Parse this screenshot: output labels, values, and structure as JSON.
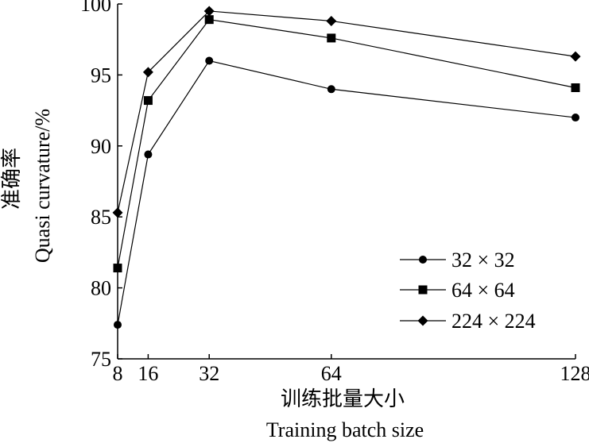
{
  "chart_data": {
    "type": "line",
    "x": [
      8,
      16,
      32,
      64,
      128
    ],
    "series": [
      {
        "name": "32 × 32",
        "marker": "circle",
        "values": [
          77.4,
          89.4,
          96.0,
          94.0,
          92.0
        ]
      },
      {
        "name": "64 × 64",
        "marker": "square",
        "values": [
          81.4,
          93.2,
          98.9,
          97.6,
          94.1
        ]
      },
      {
        "name": "224 × 224",
        "marker": "diamond",
        "values": [
          85.3,
          95.2,
          99.5,
          98.8,
          96.3
        ]
      }
    ],
    "xlabel_cn": "训练批量大小",
    "xlabel_en": "Training batch size",
    "ylabel_cn": "准确率",
    "ylabel_en": "Quasi curvature/%",
    "xticks": [
      8,
      16,
      32,
      64,
      128
    ],
    "yticks": [
      75,
      80,
      85,
      90,
      95,
      100
    ],
    "xlim": [
      8,
      128
    ],
    "ylim": [
      75,
      100
    ],
    "grid": false,
    "legend_position": "lower-right",
    "color": "#000000"
  }
}
